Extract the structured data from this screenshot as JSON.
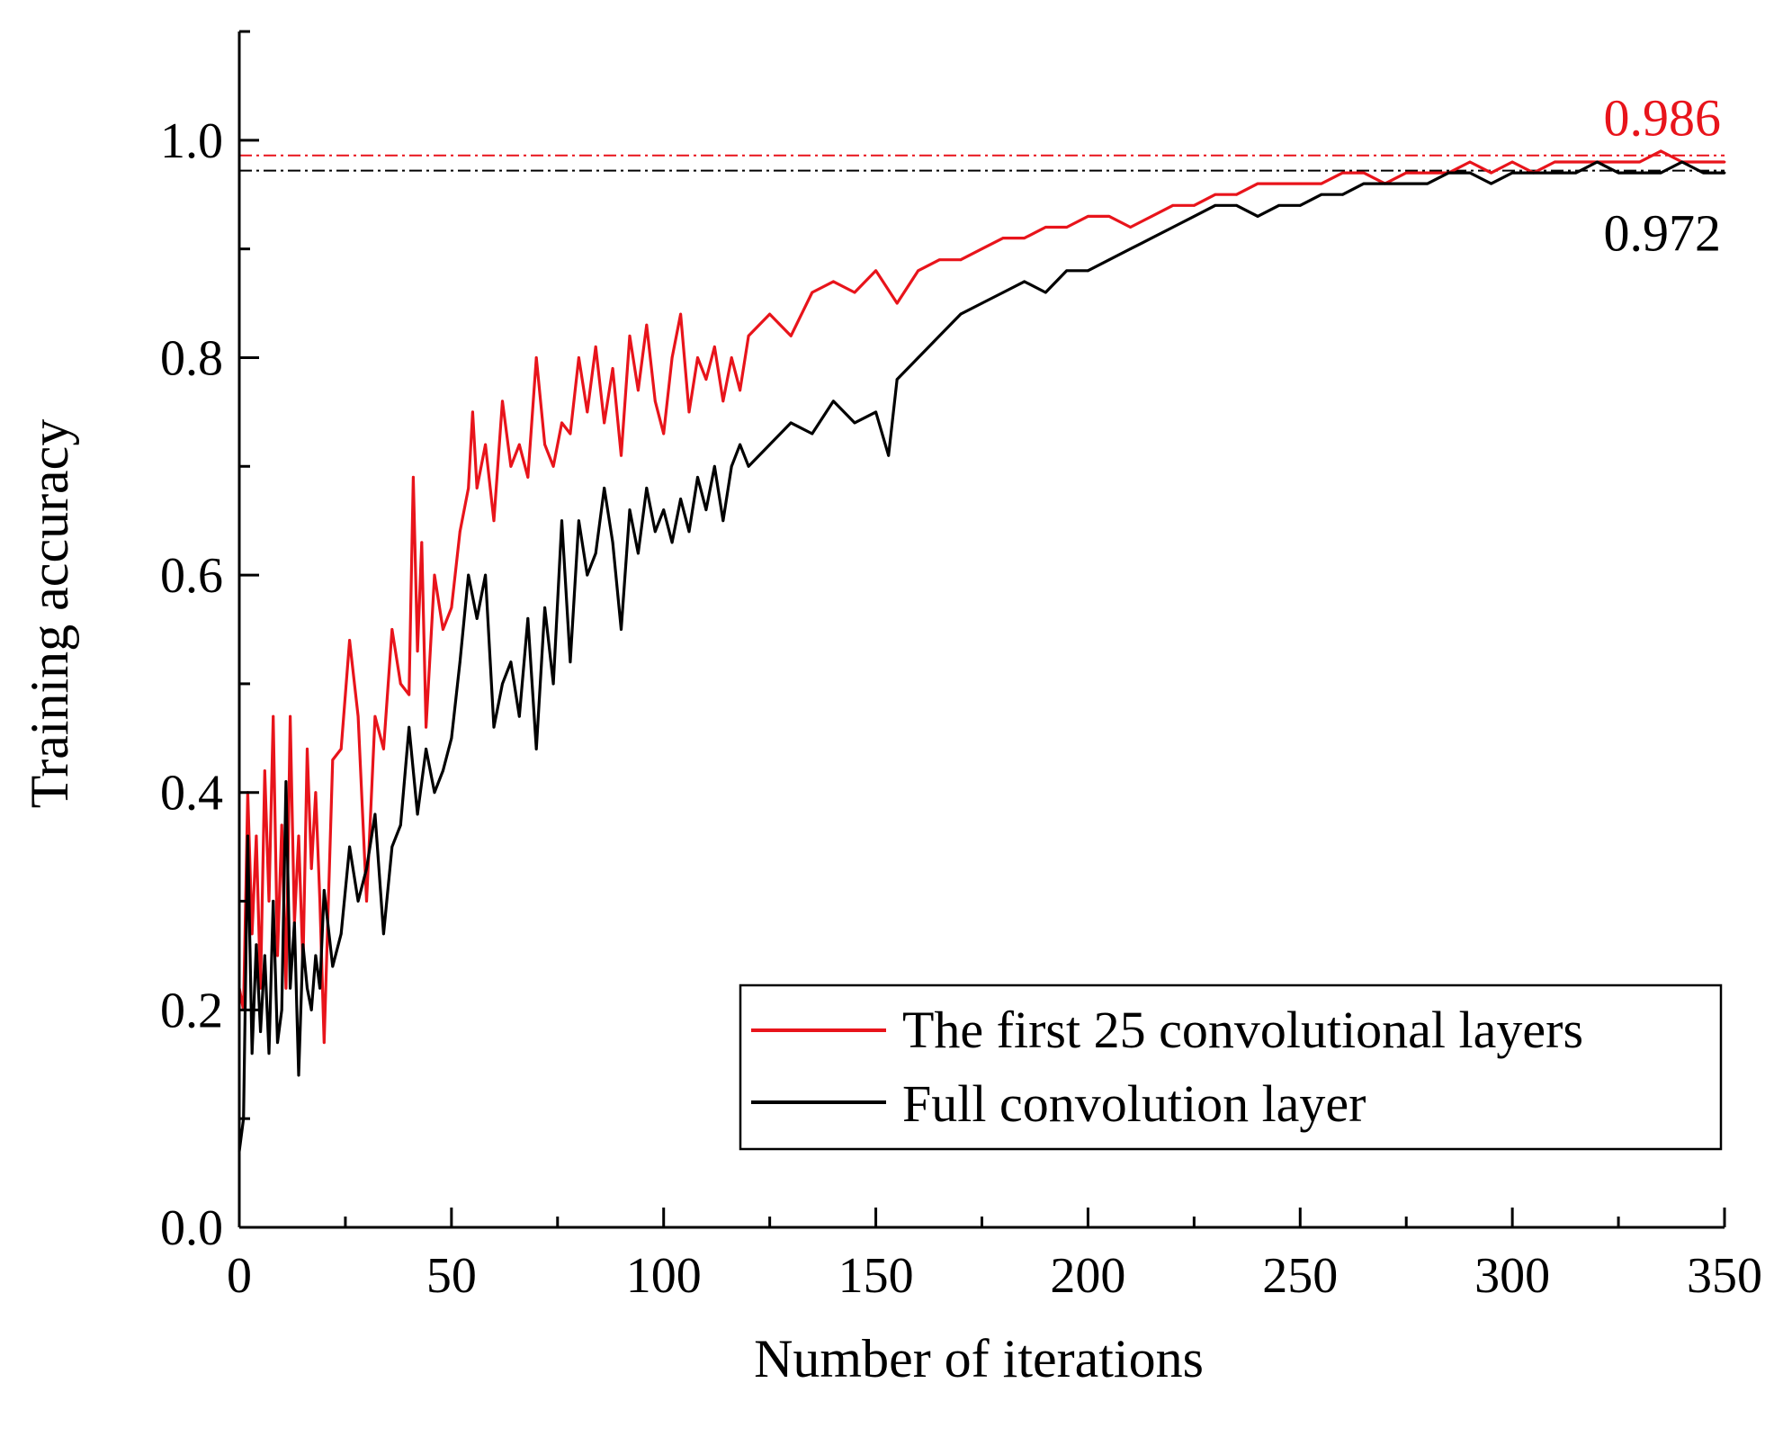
{
  "chart_data": {
    "type": "line",
    "title": "",
    "xlabel": "Number of iterations",
    "ylabel": "Training accuracy",
    "xlim": [
      0,
      350
    ],
    "ylim": [
      0,
      1.1
    ],
    "xticks": [
      {
        "value": 0,
        "label": "0"
      },
      {
        "value": 50,
        "label": "50"
      },
      {
        "value": 100,
        "label": "100"
      },
      {
        "value": 150,
        "label": "150"
      },
      {
        "value": 200,
        "label": "200"
      },
      {
        "value": 250,
        "label": "250"
      },
      {
        "value": 300,
        "label": "300"
      },
      {
        "value": 350,
        "label": "350"
      }
    ],
    "yticks": [
      {
        "value": 0.0,
        "label": "0.0"
      },
      {
        "value": 0.2,
        "label": "0.2"
      },
      {
        "value": 0.4,
        "label": "0.4"
      },
      {
        "value": 0.6,
        "label": "0.6"
      },
      {
        "value": 0.8,
        "label": "0.8"
      },
      {
        "value": 1.0,
        "label": "1.0"
      }
    ],
    "minor_x_step": 25,
    "minor_y_step": 0.1,
    "grid": false,
    "legend_position": "bottom-right",
    "reference_lines": [
      {
        "value": 0.986,
        "label": "0.986",
        "color": "#e8141b",
        "label_position": "above"
      },
      {
        "value": 0.972,
        "label": "0.972",
        "color": "#000000",
        "label_position": "below"
      }
    ],
    "series": [
      {
        "name": "The first 25 convolutional layers",
        "color": "#e8141b",
        "x": [
          0,
          1,
          2,
          3,
          4,
          5,
          6,
          7,
          8,
          9,
          10,
          11,
          12,
          13,
          14,
          15,
          16,
          17,
          18,
          19,
          20,
          22,
          24,
          26,
          28,
          30,
          32,
          34,
          36,
          38,
          40,
          41,
          42,
          43,
          44,
          46,
          48,
          50,
          52,
          54,
          55,
          56,
          58,
          60,
          62,
          64,
          66,
          68,
          70,
          72,
          74,
          76,
          78,
          80,
          82,
          84,
          86,
          88,
          90,
          92,
          94,
          96,
          98,
          100,
          102,
          104,
          106,
          108,
          110,
          112,
          114,
          116,
          118,
          120,
          125,
          130,
          135,
          140,
          145,
          150,
          155,
          160,
          165,
          170,
          175,
          180,
          185,
          190,
          195,
          200,
          205,
          210,
          215,
          220,
          225,
          230,
          235,
          240,
          245,
          250,
          255,
          260,
          265,
          270,
          275,
          280,
          285,
          290,
          295,
          300,
          305,
          310,
          315,
          320,
          325,
          330,
          335,
          340,
          345,
          350
        ],
        "y": [
          0.22,
          0.2,
          0.4,
          0.27,
          0.36,
          0.22,
          0.42,
          0.3,
          0.47,
          0.25,
          0.37,
          0.22,
          0.47,
          0.28,
          0.36,
          0.24,
          0.44,
          0.33,
          0.4,
          0.3,
          0.17,
          0.43,
          0.44,
          0.54,
          0.47,
          0.3,
          0.47,
          0.44,
          0.55,
          0.5,
          0.49,
          0.69,
          0.53,
          0.63,
          0.46,
          0.6,
          0.55,
          0.57,
          0.64,
          0.68,
          0.75,
          0.68,
          0.72,
          0.65,
          0.76,
          0.7,
          0.72,
          0.69,
          0.8,
          0.72,
          0.7,
          0.74,
          0.73,
          0.8,
          0.75,
          0.81,
          0.74,
          0.79,
          0.71,
          0.82,
          0.77,
          0.83,
          0.76,
          0.73,
          0.8,
          0.84,
          0.75,
          0.8,
          0.78,
          0.81,
          0.76,
          0.8,
          0.77,
          0.82,
          0.84,
          0.82,
          0.86,
          0.87,
          0.86,
          0.88,
          0.85,
          0.88,
          0.89,
          0.89,
          0.9,
          0.91,
          0.91,
          0.92,
          0.92,
          0.93,
          0.93,
          0.92,
          0.93,
          0.94,
          0.94,
          0.95,
          0.95,
          0.96,
          0.96,
          0.96,
          0.96,
          0.97,
          0.97,
          0.96,
          0.97,
          0.97,
          0.97,
          0.98,
          0.97,
          0.98,
          0.97,
          0.98,
          0.98,
          0.98,
          0.98,
          0.98,
          0.99,
          0.98,
          0.98,
          0.98
        ]
      },
      {
        "name": "Full convolution layer",
        "color": "#000000",
        "x": [
          0,
          1,
          2,
          3,
          4,
          5,
          6,
          7,
          8,
          9,
          10,
          11,
          12,
          13,
          14,
          15,
          16,
          17,
          18,
          19,
          20,
          22,
          24,
          26,
          28,
          30,
          32,
          34,
          36,
          38,
          40,
          42,
          44,
          46,
          48,
          50,
          52,
          54,
          56,
          58,
          60,
          62,
          64,
          66,
          68,
          70,
          72,
          74,
          76,
          78,
          80,
          82,
          84,
          86,
          88,
          90,
          92,
          94,
          96,
          98,
          100,
          102,
          104,
          106,
          108,
          110,
          112,
          114,
          116,
          118,
          120,
          125,
          130,
          135,
          140,
          145,
          150,
          153,
          155,
          160,
          165,
          170,
          175,
          180,
          185,
          190,
          195,
          200,
          205,
          210,
          215,
          220,
          225,
          230,
          235,
          240,
          245,
          250,
          255,
          260,
          265,
          270,
          275,
          280,
          285,
          290,
          295,
          300,
          305,
          310,
          315,
          320,
          325,
          330,
          335,
          340,
          345,
          350
        ],
        "y": [
          0.07,
          0.1,
          0.36,
          0.16,
          0.26,
          0.18,
          0.25,
          0.16,
          0.3,
          0.17,
          0.2,
          0.41,
          0.22,
          0.28,
          0.14,
          0.26,
          0.22,
          0.2,
          0.25,
          0.22,
          0.31,
          0.24,
          0.27,
          0.35,
          0.3,
          0.33,
          0.38,
          0.27,
          0.35,
          0.37,
          0.46,
          0.38,
          0.44,
          0.4,
          0.42,
          0.45,
          0.52,
          0.6,
          0.56,
          0.6,
          0.46,
          0.5,
          0.52,
          0.47,
          0.56,
          0.44,
          0.57,
          0.5,
          0.65,
          0.52,
          0.65,
          0.6,
          0.62,
          0.68,
          0.63,
          0.55,
          0.66,
          0.62,
          0.68,
          0.64,
          0.66,
          0.63,
          0.67,
          0.64,
          0.69,
          0.66,
          0.7,
          0.65,
          0.7,
          0.72,
          0.7,
          0.72,
          0.74,
          0.73,
          0.76,
          0.74,
          0.75,
          0.71,
          0.78,
          0.8,
          0.82,
          0.84,
          0.85,
          0.86,
          0.87,
          0.86,
          0.88,
          0.88,
          0.89,
          0.9,
          0.91,
          0.92,
          0.93,
          0.94,
          0.94,
          0.93,
          0.94,
          0.94,
          0.95,
          0.95,
          0.96,
          0.96,
          0.96,
          0.96,
          0.97,
          0.97,
          0.96,
          0.97,
          0.97,
          0.97,
          0.97,
          0.98,
          0.97,
          0.97,
          0.97,
          0.98,
          0.97,
          0.97
        ]
      }
    ]
  }
}
